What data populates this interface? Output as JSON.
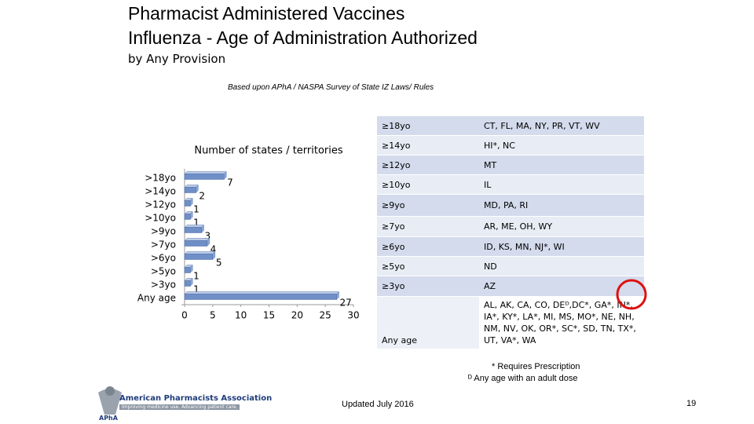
{
  "header": {
    "title": "Pharmacist Administered Vaccines",
    "subtitle": "Influenza  - Age of Administration Authorized",
    "provision": "by Any Provision",
    "source": "Based upon APhA / NASPA Survey of State IZ Laws/ Rules"
  },
  "chart_data": {
    "type": "bar",
    "orientation": "horizontal",
    "title": "Number of states / territories",
    "categories": [
      ">18yo",
      ">14yo",
      ">12yo",
      ">10yo",
      ">9yo",
      ">7yo",
      ">6yo",
      ">5yo",
      ">3yo",
      "Any age"
    ],
    "values": [
      7,
      2,
      1,
      1,
      3,
      4,
      5,
      1,
      1,
      27
    ],
    "color": "#6f8fc6",
    "xlim": [
      0,
      30
    ],
    "xticks": [
      0,
      5,
      10,
      15,
      20,
      25,
      30
    ],
    "data_labels": true
  },
  "table": {
    "rows": [
      [
        "≥18yo",
        "CT, FL, MA, NY,  PR, VT, WV"
      ],
      [
        "≥14yo",
        "HI*, NC"
      ],
      [
        "≥12yo",
        "MT"
      ],
      [
        "≥10yo",
        "IL"
      ],
      [
        "≥9yo",
        "MD, PA, RI"
      ],
      [
        "≥7yo",
        "AR, ME, OH, WY"
      ],
      [
        "≥6yo",
        "ID, KS, MN, NJ*,  WI"
      ],
      [
        "≥5yo",
        "ND"
      ],
      [
        "≥3yo",
        "AZ"
      ],
      [
        "Any age",
        "AL, AK, CA, CO, DEᴰ,DC*, GA*, IN*, IA*,  KY*, LA*, MI, MS, MO*, NE, NH, NM, NV, OK, OR*, SC*, SD, TN, TX*, UT, VA*, WA"
      ]
    ]
  },
  "footnotes": [
    "* Requires Prescription",
    "ᴰ Any age with an adult dose"
  ],
  "footer": {
    "updated": "Updated July 2016",
    "page": "19",
    "logo_name": "American Pharmacists Association",
    "logo_tagline": "Improving medicine use. Advancing patient care.",
    "logo_abbr": "APhA"
  }
}
